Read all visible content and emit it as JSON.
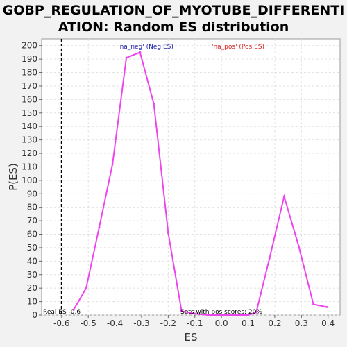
{
  "title_line1": "GOBP_REGULATION_OF_MYOTUBE_DIFFERENTI",
  "title_line2": "ATION: Random ES distribution",
  "chart_data": {
    "type": "line",
    "xlabel": "ES",
    "ylabel": "P(ES)",
    "xlim": [
      -0.675,
      0.445
    ],
    "ylim": [
      0,
      205
    ],
    "x_ticks": [
      -0.6,
      -0.5,
      -0.4,
      -0.3,
      -0.2,
      -0.1,
      0.0,
      0.1,
      0.2,
      0.3,
      0.4
    ],
    "x_tick_labels": [
      "-0.6",
      "-0.5",
      "-0.4",
      "-0.3",
      "-0.2",
      "-0.1",
      "0.0",
      "0.1",
      "0.2",
      "0.3",
      "0.4"
    ],
    "y_ticks": [
      0,
      10,
      20,
      30,
      40,
      50,
      60,
      70,
      80,
      90,
      100,
      110,
      120,
      130,
      140,
      150,
      160,
      170,
      180,
      190,
      200
    ],
    "y_tick_labels": [
      "0",
      "10",
      "20",
      "30",
      "40",
      "50",
      "60",
      "70",
      "80",
      "90",
      "100",
      "110",
      "120",
      "130",
      "140",
      "150",
      "160",
      "170",
      "180",
      "190",
      "200"
    ],
    "grid": true,
    "series": [
      {
        "color": "#ee44ee",
        "x": [
          -0.555,
          -0.508,
          -0.459,
          -0.409,
          -0.357,
          -0.306,
          -0.254,
          -0.2,
          -0.15,
          -0.1,
          -0.05,
          0.0,
          0.05,
          0.1,
          0.13,
          0.18,
          0.235,
          0.29,
          0.345,
          0.395
        ],
        "y": [
          4,
          20,
          65,
          112,
          191,
          195,
          157,
          61,
          3,
          1,
          0,
          0,
          0,
          0,
          2,
          42,
          88,
          51,
          8,
          6
        ]
      }
    ],
    "real_es": -0.6,
    "real_es_label": "Real ES -0.6",
    "legend_neg": "'na_neg' (Neg ES)",
    "legend_pos": "'na_pos' (Pos ES)",
    "legend_neg_color": "#2222aa",
    "legend_pos_color": "#dd2222",
    "annotation": "Sets with pos scores: 20%"
  }
}
